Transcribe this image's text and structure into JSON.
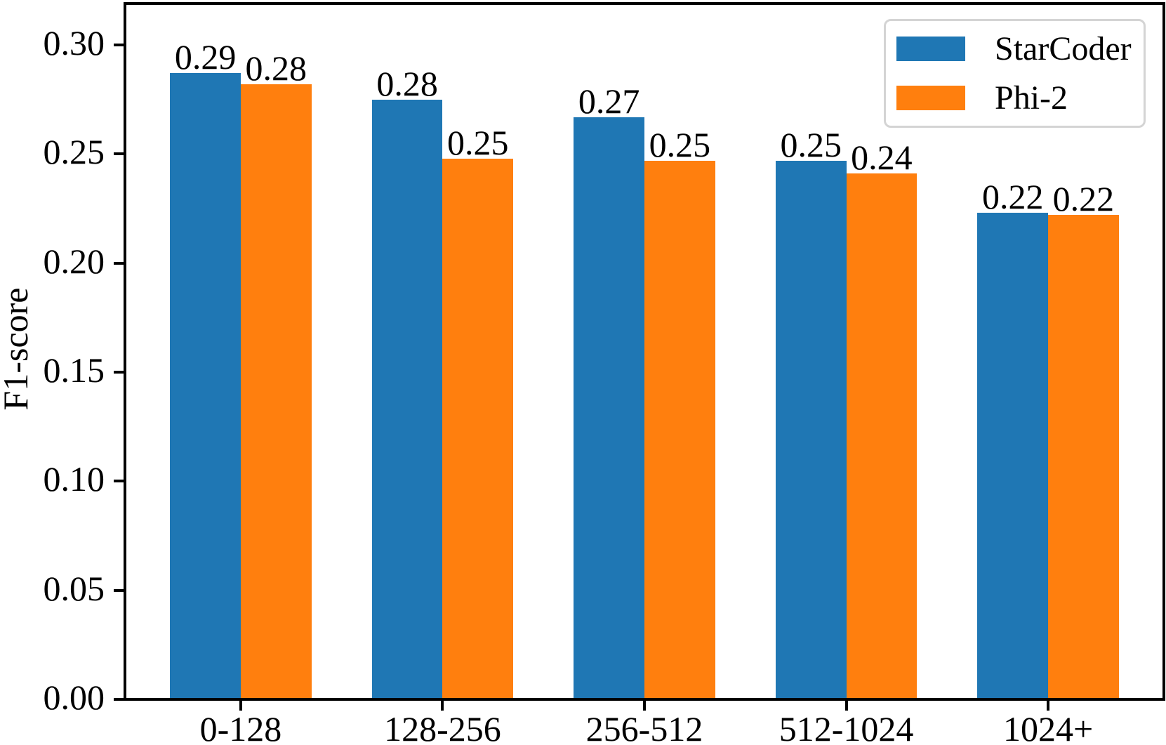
{
  "chart_data": {
    "type": "bar",
    "title": "",
    "xlabel": "",
    "ylabel": "F1-score",
    "categories": [
      "0-128",
      "128-256",
      "256-512",
      "512-1024",
      "1024+"
    ],
    "series": [
      {
        "name": "StarCoder",
        "color": "#1f77b4",
        "values": [
          0.29,
          0.28,
          0.27,
          0.25,
          0.22
        ],
        "bar_heights": [
          0.287,
          0.275,
          0.267,
          0.247,
          0.223
        ],
        "labels": [
          "0.29",
          "0.28",
          "0.27",
          "0.25",
          "0.22"
        ]
      },
      {
        "name": "Phi-2",
        "color": "#ff7f0e",
        "values": [
          0.28,
          0.25,
          0.25,
          0.24,
          0.22
        ],
        "bar_heights": [
          0.282,
          0.248,
          0.247,
          0.241,
          0.222
        ],
        "labels": [
          "0.28",
          "0.25",
          "0.25",
          "0.24",
          "0.22"
        ]
      }
    ],
    "yticks": {
      "values": [
        0.0,
        0.05,
        0.1,
        0.15,
        0.2,
        0.25,
        0.3
      ],
      "labels": [
        "0.00",
        "0.05",
        "0.10",
        "0.15",
        "0.20",
        "0.25",
        "0.30"
      ]
    },
    "ylim": [
      0,
      0.319
    ],
    "grid": false,
    "legend": {
      "position": "upper right",
      "entries": [
        "StarCoder",
        "Phi-2"
      ]
    },
    "bar_value_labels_shown": true,
    "colors": {
      "axes": "#000000",
      "legend_border": "#d4d4d4",
      "background": "#ffffff"
    }
  }
}
